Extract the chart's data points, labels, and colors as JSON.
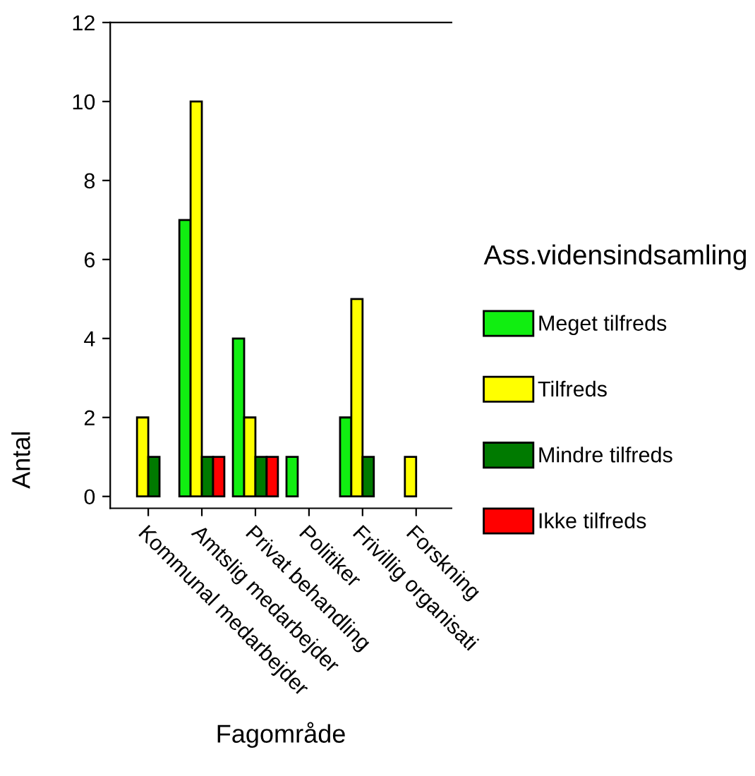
{
  "chart_data": {
    "type": "bar",
    "xlabel": "Fagområde",
    "ylabel": "Antal",
    "legend_title": "Ass.vidensindsamling",
    "categories": [
      "Kommunal medarbejder",
      "Amtslig medarbejder",
      "Privat behandling",
      "Politiker",
      "Frivillig organisati",
      "Forskning"
    ],
    "series": [
      {
        "name": "Meget tilfreds",
        "color": "#11ee11",
        "values": [
          null,
          7,
          4,
          1,
          2,
          null
        ]
      },
      {
        "name": "Tilfreds",
        "color": "#ffff00",
        "values": [
          2,
          10,
          2,
          null,
          5,
          1
        ]
      },
      {
        "name": "Mindre tilfreds",
        "color": "#007a00",
        "values": [
          1,
          1,
          1,
          null,
          1,
          null
        ]
      },
      {
        "name": "Ikke tilfreds",
        "color": "#ff0000",
        "values": [
          null,
          1,
          1,
          null,
          null,
          null
        ]
      }
    ],
    "ylim": [
      -0.3,
      12
    ],
    "yticks": [
      0,
      2,
      4,
      6,
      8,
      10,
      12
    ],
    "grid": false,
    "legend": "right"
  }
}
